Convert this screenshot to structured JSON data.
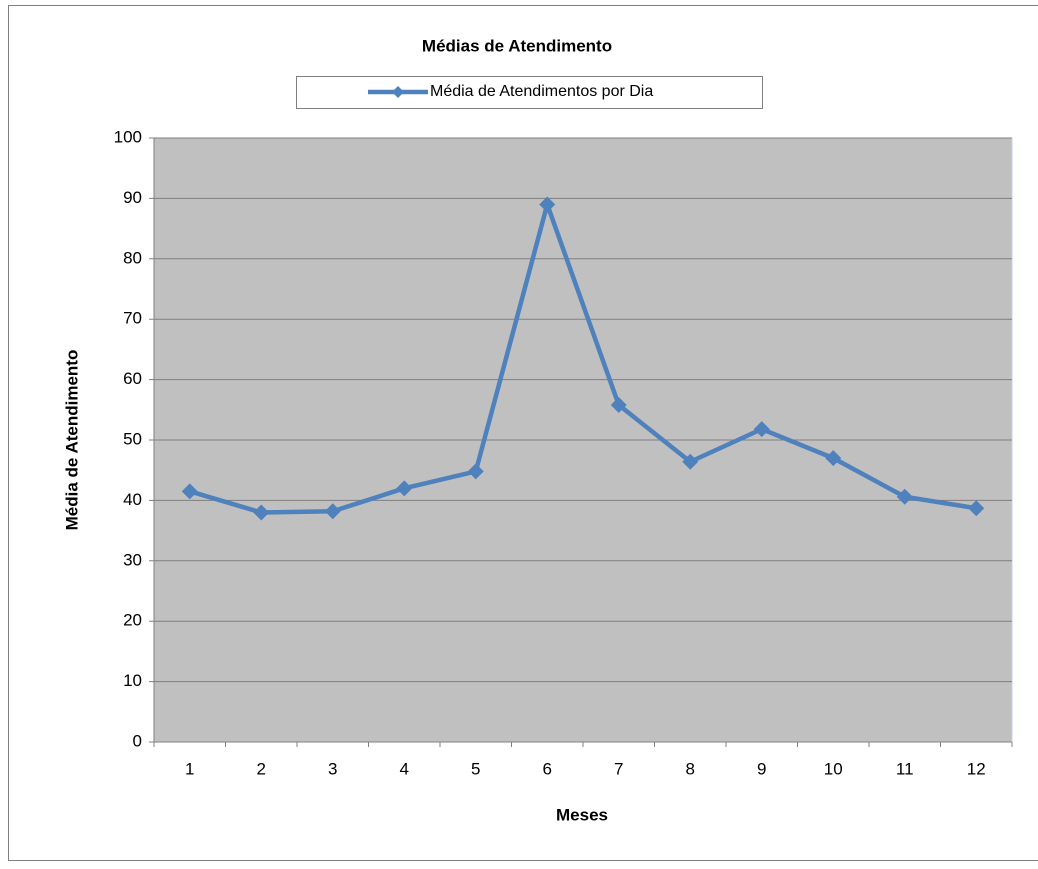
{
  "chart_data": {
    "type": "line",
    "title": "Médias de Atendimento",
    "x_label": "Meses",
    "y_label": "Média de Atendimento",
    "categories": [
      "1",
      "2",
      "3",
      "4",
      "5",
      "6",
      "7",
      "8",
      "9",
      "10",
      "11",
      "12"
    ],
    "series": [
      {
        "name": "Média de Atendimentos por Dia",
        "color": "#4f81bd",
        "values": [
          41.5,
          38,
          38.2,
          42,
          44.8,
          89,
          55.8,
          46.4,
          51.8,
          47,
          40.6,
          38.7
        ]
      }
    ],
    "ylim": [
      0,
      100
    ],
    "yticks": [
      0,
      10,
      20,
      30,
      40,
      50,
      60,
      70,
      80,
      90,
      100
    ],
    "grid": true,
    "legend": "top"
  }
}
